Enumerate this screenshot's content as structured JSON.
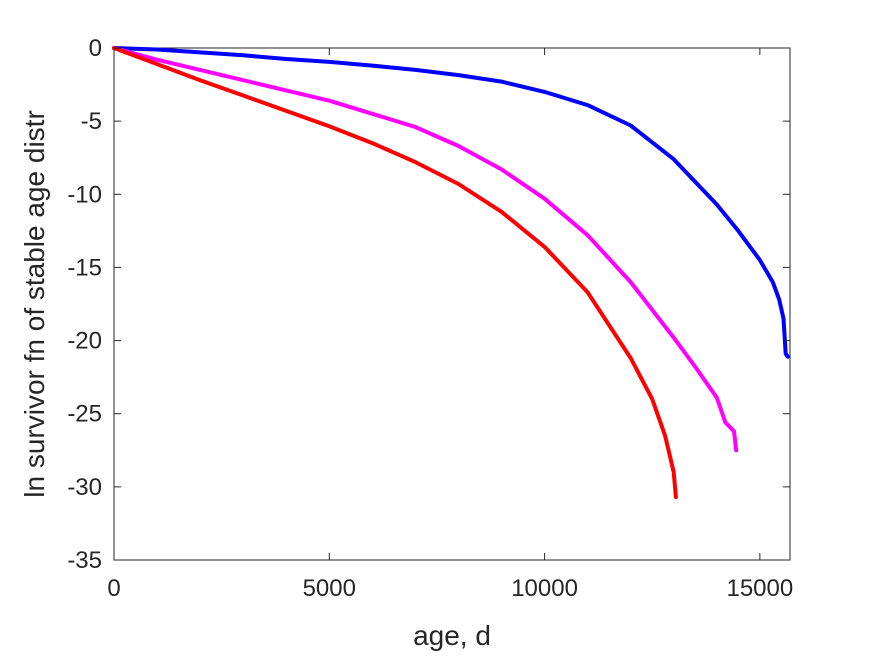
{
  "chart_data": {
    "type": "line",
    "title": "",
    "xlabel": "age, d",
    "ylabel": "ln survivor fn of stable age distr",
    "xlim": [
      0,
      15700
    ],
    "ylim": [
      -35,
      0
    ],
    "xticks": [
      0,
      5000,
      10000,
      15000
    ],
    "xtick_labels": [
      "0",
      "5000",
      "10000",
      "15000"
    ],
    "yticks": [
      0,
      -5,
      -10,
      -15,
      -20,
      -25,
      -30,
      -35
    ],
    "ytick_labels": [
      "0",
      "-5",
      "-10",
      "-15",
      "-20",
      "-25",
      "-30",
      "-35"
    ],
    "grid": false,
    "legend": "none",
    "series": [
      {
        "color": "#0000ff",
        "x": [
          0,
          1000,
          2000,
          3000,
          4000,
          5000,
          6000,
          7000,
          8000,
          9000,
          10000,
          11000,
          12000,
          13000,
          14000,
          14500,
          15000,
          15300,
          15450,
          15550,
          15600,
          15650
        ],
        "y": [
          0,
          -0.1,
          -0.3,
          -0.5,
          -0.75,
          -0.95,
          -1.2,
          -1.5,
          -1.85,
          -2.3,
          -3.0,
          -3.9,
          -5.3,
          -7.6,
          -10.7,
          -12.5,
          -14.5,
          -16.0,
          -17.2,
          -18.5,
          -20.9,
          -21.1
        ]
      },
      {
        "color": "#ff00ff",
        "x": [
          0,
          1000,
          2000,
          3000,
          4000,
          5000,
          6000,
          7000,
          8000,
          9000,
          10000,
          11000,
          12000,
          13000,
          13500,
          14000,
          14200,
          14300,
          14400,
          14450
        ],
        "y": [
          0,
          -0.8,
          -1.5,
          -2.2,
          -2.9,
          -3.6,
          -4.5,
          -5.4,
          -6.7,
          -8.3,
          -10.3,
          -12.8,
          -16.0,
          -19.8,
          -21.8,
          -23.9,
          -25.6,
          -25.9,
          -26.2,
          -27.5
        ]
      },
      {
        "color": "#ff0000",
        "x": [
          0,
          1000,
          2000,
          3000,
          4000,
          5000,
          6000,
          7000,
          8000,
          9000,
          10000,
          11000,
          12000,
          12500,
          12800,
          13000,
          13050
        ],
        "y": [
          0,
          -1.1,
          -2.2,
          -3.25,
          -4.3,
          -5.35,
          -6.5,
          -7.8,
          -9.3,
          -11.2,
          -13.6,
          -16.7,
          -21.2,
          -24.0,
          -26.5,
          -29.0,
          -30.7
        ]
      }
    ]
  }
}
